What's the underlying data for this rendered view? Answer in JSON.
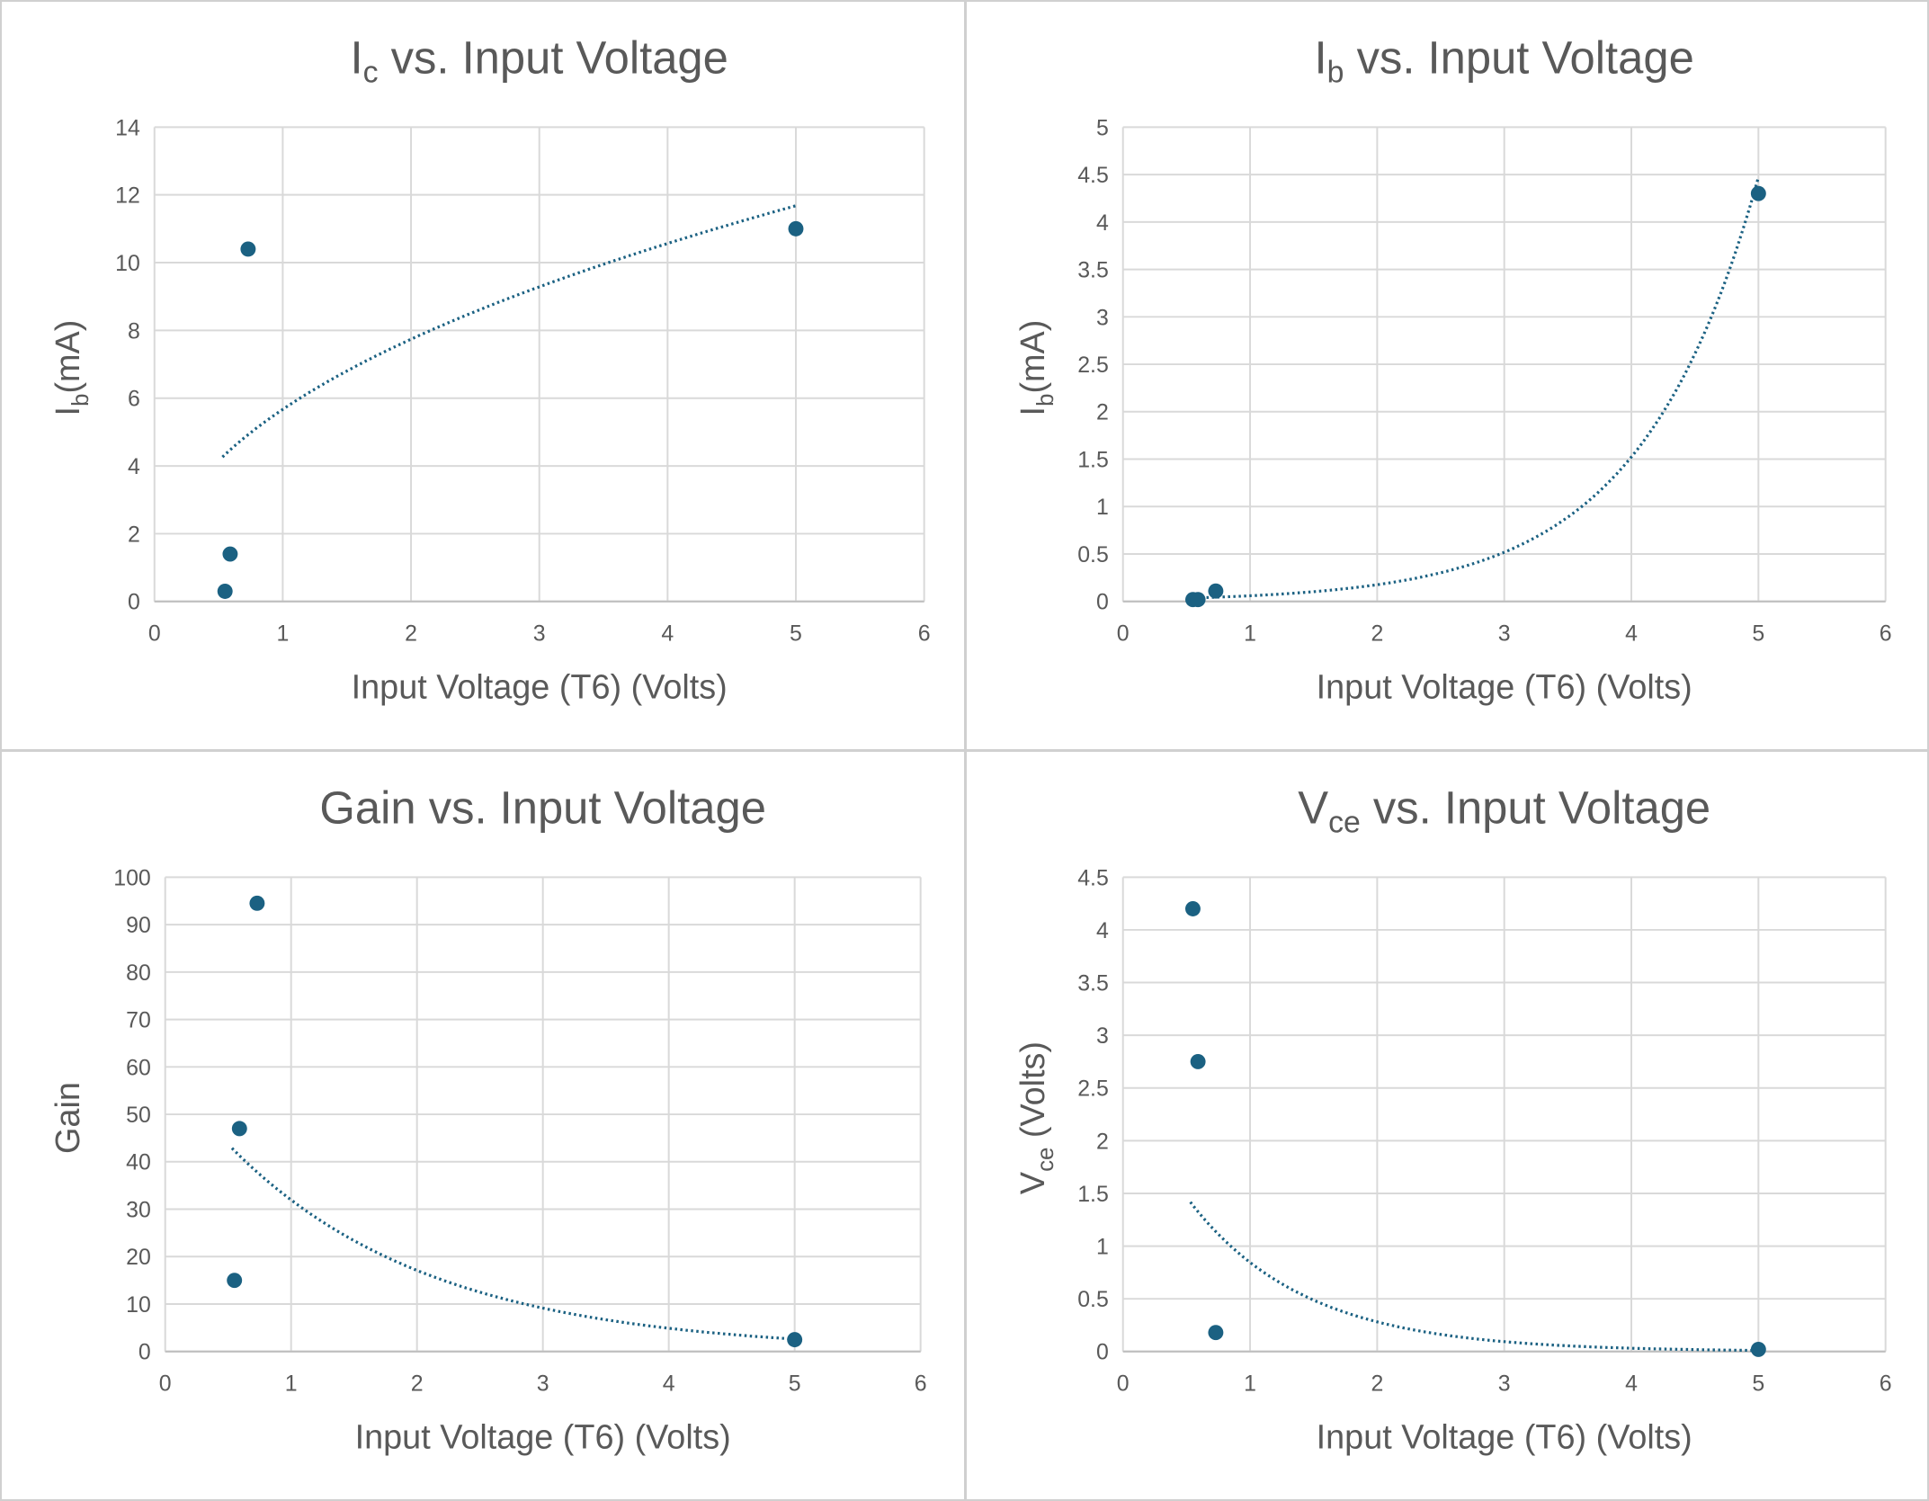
{
  "colors": {
    "marker": "#1b6182",
    "trendline": "#1b6182",
    "grid": "#d9d9d9",
    "text": "#595959"
  },
  "chart_data": [
    {
      "type": "scatter",
      "title": {
        "main": "I",
        "sub": "c",
        "rest": " vs. Input Voltage"
      },
      "xlabel": "Input Voltage (T6) (Volts)",
      "ylabel": {
        "main": "I",
        "sub": "b",
        "rest": "(mA)"
      },
      "xlim": [
        0,
        6
      ],
      "ylim": [
        0,
        14
      ],
      "xticks": [
        "0",
        "1",
        "2",
        "3",
        "4",
        "5",
        "6"
      ],
      "yticks": [
        "0",
        "2",
        "4",
        "6",
        "8",
        "10",
        "12",
        "14"
      ],
      "grid": true,
      "points": [
        {
          "x": 0.55,
          "y": 0.3
        },
        {
          "x": 0.59,
          "y": 1.4
        },
        {
          "x": 0.73,
          "y": 10.4
        },
        {
          "x": 5.0,
          "y": 11.0
        }
      ],
      "trendline": {
        "type": "power",
        "a": 5.67,
        "b": 0.449,
        "x_range": [
          0.53,
          5.0
        ]
      }
    },
    {
      "type": "scatter",
      "title": {
        "main": "I",
        "sub": "b",
        "rest": " vs. Input Voltage"
      },
      "xlabel": "Input Voltage (T6) (Volts)",
      "ylabel": {
        "main": "I",
        "sub": "b",
        "rest": "(mA)"
      },
      "xlim": [
        0,
        6
      ],
      "ylim": [
        0,
        5
      ],
      "xticks": [
        "0",
        "1",
        "2",
        "3",
        "4",
        "5",
        "6"
      ],
      "yticks": [
        "0",
        "0.5",
        "1",
        "1.5",
        "2",
        "2.5",
        "3",
        "3.5",
        "4",
        "4.5",
        "5"
      ],
      "grid": true,
      "points": [
        {
          "x": 0.55,
          "y": 0.02
        },
        {
          "x": 0.59,
          "y": 0.02
        },
        {
          "x": 0.73,
          "y": 0.11
        },
        {
          "x": 5.0,
          "y": 4.3
        }
      ],
      "trendline": {
        "type": "exponential",
        "a": 0.0205,
        "b": 1.077,
        "x_range": [
          0.53,
          5.0
        ]
      }
    },
    {
      "type": "scatter",
      "title": {
        "main": "Gain",
        "sub": "",
        "rest": " vs. Input Voltage"
      },
      "xlabel": "Input Voltage (T6) (Volts)",
      "ylabel": {
        "main": "Gain",
        "sub": "",
        "rest": ""
      },
      "xlim": [
        0,
        6
      ],
      "ylim": [
        0,
        100
      ],
      "xticks": [
        "0",
        "1",
        "2",
        "3",
        "4",
        "5",
        "6"
      ],
      "yticks": [
        "0",
        "10",
        "20",
        "30",
        "40",
        "50",
        "60",
        "70",
        "80",
        "90",
        "100"
      ],
      "grid": true,
      "points": [
        {
          "x": 0.55,
          "y": 15
        },
        {
          "x": 0.59,
          "y": 47
        },
        {
          "x": 0.73,
          "y": 94.5
        },
        {
          "x": 5.0,
          "y": 2.5
        }
      ],
      "trendline": {
        "type": "exponential",
        "a": 59.7,
        "b": -0.625,
        "x_range": [
          0.53,
          5.0
        ]
      }
    },
    {
      "type": "scatter",
      "title": {
        "main": "V",
        "sub": "ce",
        "rest": " vs. Input Voltage"
      },
      "xlabel": "Input Voltage (T6) (Volts)",
      "ylabel": {
        "main": "V",
        "sub": "ce",
        "rest": " (Volts)"
      },
      "xlim": [
        0,
        6
      ],
      "ylim": [
        0,
        4.5
      ],
      "xticks": [
        "0",
        "1",
        "2",
        "3",
        "4",
        "5",
        "6"
      ],
      "yticks": [
        "0",
        "0.5",
        "1",
        "1.5",
        "2",
        "2.5",
        "3",
        "3.5",
        "4",
        "4.5"
      ],
      "grid": true,
      "points": [
        {
          "x": 0.55,
          "y": 4.2
        },
        {
          "x": 0.59,
          "y": 2.75
        },
        {
          "x": 0.73,
          "y": 0.18
        },
        {
          "x": 5.0,
          "y": 0.02
        }
      ],
      "trendline": {
        "type": "exponential",
        "a": 2.54,
        "b": -1.1,
        "x_range": [
          0.53,
          5.0
        ]
      }
    }
  ]
}
